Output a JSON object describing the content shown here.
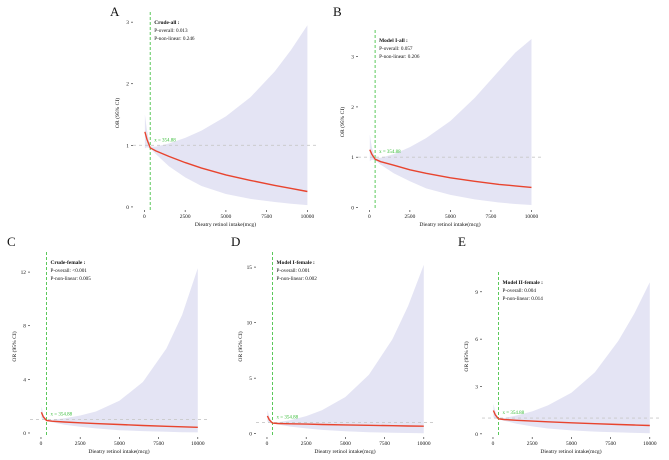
{
  "colors": {
    "band": "#e4e4f4",
    "curve": "#e8442e",
    "ref_line": "#c8c8c8",
    "knot_line": "#33bb33",
    "knot_label": "#33bb33",
    "axis": "#222222"
  },
  "chart_data": [
    {
      "panel": "A",
      "type": "line",
      "annotation_title": "Crude-all :",
      "p_overall": "P-overall: 0.013",
      "p_nonlinear": "P-non-linear: 0.246",
      "knot_label": "x = 354.88",
      "knot_x": 354.88,
      "ref_y": 1,
      "xlabel": "Dieatry retinol intake(mcg)",
      "ylabel": "OR (95% CI)",
      "xlim": [
        -700,
        10650
      ],
      "ylim": [
        -0.05,
        3.1
      ],
      "xticks": [
        0,
        2500,
        5000,
        7500,
        10000
      ],
      "xtick_labels": [
        "0",
        "2500",
        "5000",
        "7500",
        "10000"
      ],
      "yticks": [
        0,
        1,
        2,
        3
      ],
      "ytick_labels": [
        "0",
        "1",
        "2",
        "3"
      ],
      "x": [
        30,
        150,
        354.88,
        700,
        1500,
        2500,
        3500,
        5000,
        6500,
        8000,
        9000,
        10000
      ],
      "y": [
        1.22,
        1.1,
        0.96,
        0.91,
        0.82,
        0.72,
        0.63,
        0.52,
        0.43,
        0.35,
        0.3,
        0.25
      ],
      "lower": [
        0.95,
        0.97,
        0.95,
        0.86,
        0.66,
        0.48,
        0.34,
        0.21,
        0.13,
        0.08,
        0.05,
        0.03
      ],
      "upper": [
        1.5,
        1.25,
        0.98,
        0.98,
        1.03,
        1.12,
        1.24,
        1.47,
        1.78,
        2.2,
        2.55,
        2.95
      ]
    },
    {
      "panel": "B",
      "type": "line",
      "annotation_title": "Model I-all :",
      "p_overall": "P-overall: 0.057",
      "p_nonlinear": "P-non-linear: 0.206",
      "knot_label": "x = 354.88",
      "knot_x": 354.88,
      "ref_y": 1,
      "xlabel": "Dieatry retinol intake(mcg)",
      "ylabel": "OR (95% CI)",
      "xlim": [
        -700,
        10650
      ],
      "ylim": [
        -0.05,
        3.45
      ],
      "xticks": [
        0,
        2500,
        5000,
        7500,
        10000
      ],
      "xtick_labels": [
        "0",
        "2500",
        "5000",
        "7500",
        "10000"
      ],
      "yticks": [
        0,
        1,
        2,
        3
      ],
      "ytick_labels": [
        "0",
        "1",
        "2",
        "3"
      ],
      "x": [
        30,
        150,
        354.88,
        700,
        1500,
        2500,
        3500,
        5000,
        6500,
        8000,
        9000,
        10000
      ],
      "y": [
        1.15,
        1.06,
        0.96,
        0.91,
        0.84,
        0.75,
        0.68,
        0.59,
        0.52,
        0.46,
        0.43,
        0.4
      ],
      "lower": [
        0.92,
        0.95,
        0.94,
        0.85,
        0.68,
        0.52,
        0.38,
        0.25,
        0.16,
        0.1,
        0.07,
        0.05
      ],
      "upper": [
        1.45,
        1.2,
        0.98,
        0.99,
        1.06,
        1.2,
        1.38,
        1.72,
        2.18,
        2.72,
        3.08,
        3.35
      ]
    },
    {
      "panel": "C",
      "type": "line",
      "annotation_title": "Crude-female :",
      "p_overall": "P-overall: <0.001",
      "p_nonlinear": "P-non-linear: 0.005",
      "knot_label": "x = 354.88",
      "knot_x": 354.88,
      "ref_y": 1,
      "xlabel": "Dieatry retinol intake(mcg)",
      "ylabel": "OR (95% CI)",
      "xlim": [
        -700,
        10650
      ],
      "ylim": [
        -0.3,
        13.2
      ],
      "xticks": [
        0,
        2500,
        5000,
        7500,
        10000
      ],
      "xtick_labels": [
        "0",
        "2500",
        "5000",
        "7500",
        "10000"
      ],
      "yticks": [
        0,
        4,
        8,
        12
      ],
      "ytick_labels": [
        "0",
        "4",
        "8",
        "12"
      ],
      "x": [
        30,
        150,
        354.88,
        700,
        1500,
        2500,
        3500,
        5000,
        6500,
        8000,
        9000,
        10000
      ],
      "y": [
        1.55,
        1.2,
        0.93,
        0.88,
        0.82,
        0.76,
        0.7,
        0.63,
        0.56,
        0.5,
        0.46,
        0.42
      ],
      "lower": [
        1.1,
        1.0,
        0.9,
        0.8,
        0.62,
        0.46,
        0.34,
        0.21,
        0.14,
        0.09,
        0.06,
        0.04
      ],
      "upper": [
        2.0,
        1.4,
        0.96,
        0.98,
        1.1,
        1.3,
        1.6,
        2.4,
        3.8,
        6.3,
        8.8,
        12.3
      ]
    },
    {
      "panel": "D",
      "type": "line",
      "annotation_title": "Model I-female :",
      "p_overall": "P-overall: 0.001",
      "p_nonlinear": "P-non-linear: 0.002",
      "knot_label": "x = 354.88",
      "knot_x": 354.88,
      "ref_y": 1,
      "xlabel": "Dieatry retinol intake(mcg)",
      "ylabel": "OR (95% CI)",
      "xlim": [
        -700,
        10650
      ],
      "ylim": [
        -0.3,
        16.0
      ],
      "xticks": [
        0,
        2500,
        5000,
        7500,
        10000
      ],
      "xtick_labels": [
        "0",
        "2500",
        "5000",
        "7500",
        "10000"
      ],
      "yticks": [
        0,
        5,
        10,
        15
      ],
      "ytick_labels": [
        "0",
        "5",
        "10",
        "15"
      ],
      "x": [
        30,
        150,
        354.88,
        700,
        1500,
        2500,
        3500,
        5000,
        6500,
        8000,
        9000,
        10000
      ],
      "y": [
        1.6,
        1.25,
        0.95,
        0.92,
        0.89,
        0.86,
        0.83,
        0.79,
        0.75,
        0.72,
        0.69,
        0.67
      ],
      "lower": [
        1.1,
        1.0,
        0.92,
        0.83,
        0.64,
        0.47,
        0.34,
        0.21,
        0.13,
        0.08,
        0.06,
        0.04
      ],
      "upper": [
        2.1,
        1.5,
        0.98,
        1.02,
        1.22,
        1.58,
        2.1,
        3.3,
        5.3,
        8.5,
        11.5,
        15.2
      ]
    },
    {
      "panel": "E",
      "type": "line",
      "annotation_title": "Model II-female :",
      "p_overall": "P-overall: 0.004",
      "p_nonlinear": "P-non-linear: 0.014",
      "knot_label": "x = 354.88",
      "knot_x": 354.88,
      "ref_y": 1,
      "xlabel": "Dieatry retinol intake(mcg)",
      "ylabel": "OR (95% CI)",
      "xlim": [
        -700,
        10650
      ],
      "ylim": [
        -0.2,
        10.0
      ],
      "xticks": [
        0,
        2500,
        5000,
        7500,
        10000
      ],
      "xtick_labels": [
        "0",
        "2500",
        "5000",
        "7500",
        "10000"
      ],
      "yticks": [
        0,
        3,
        6,
        9
      ],
      "ytick_labels": [
        "0",
        "3",
        "6",
        "9"
      ],
      "x": [
        30,
        150,
        354.88,
        700,
        1500,
        2500,
        3500,
        5000,
        6500,
        8000,
        9000,
        10000
      ],
      "y": [
        1.48,
        1.2,
        0.95,
        0.91,
        0.86,
        0.81,
        0.76,
        0.7,
        0.64,
        0.59,
        0.56,
        0.53
      ],
      "lower": [
        1.05,
        0.98,
        0.92,
        0.83,
        0.64,
        0.47,
        0.34,
        0.22,
        0.14,
        0.09,
        0.06,
        0.04
      ],
      "upper": [
        1.9,
        1.42,
        0.98,
        1.0,
        1.16,
        1.42,
        1.8,
        2.6,
        3.9,
        5.9,
        7.6,
        9.6
      ]
    }
  ]
}
